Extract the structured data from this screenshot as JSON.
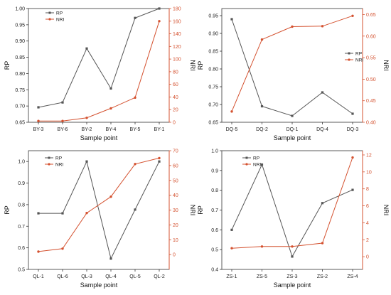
{
  "colors": {
    "rp": "#555555",
    "nri": "#d4512f",
    "axis": "#333333"
  },
  "chart_data": [
    {
      "type": "line",
      "x_ticks": [
        "BY-3",
        "BY-6",
        "BY-2",
        "BY-4",
        "BY-5",
        "BY-1"
      ],
      "xlabel": "Sample point",
      "ylabel_left": "RP",
      "ylabel_right": "NRI",
      "ylim_left": [
        0.65,
        1.0
      ],
      "yticks_left": [
        "0.65",
        "0.70",
        "0.75",
        "0.80",
        "0.85",
        "0.90",
        "0.95",
        "1.00"
      ],
      "ylim_right": [
        0,
        180
      ],
      "yticks_right": [
        "0",
        "20",
        "40",
        "60",
        "80",
        "100",
        "120",
        "140",
        "160",
        "180"
      ],
      "legend": {
        "position": "top-left"
      },
      "series": [
        {
          "name": "RP",
          "axis": "left",
          "marker": "square",
          "values": [
            0.696,
            0.711,
            0.877,
            0.754,
            0.971,
            1.0
          ]
        },
        {
          "name": "NRI",
          "axis": "right",
          "marker": "circle",
          "values": [
            2,
            2,
            7,
            22,
            39,
            160
          ]
        }
      ]
    },
    {
      "type": "line",
      "x_ticks": [
        "DQ-5",
        "DQ-2",
        "DQ-1",
        "DQ-4",
        "DQ-3"
      ],
      "xlabel": "Sample point",
      "ylabel_left": "RP",
      "ylabel_right": "NRI",
      "ylim_left": [
        0.65,
        0.97
      ],
      "yticks_left": [
        "0.65",
        "0.70",
        "0.75",
        "0.80",
        "0.85",
        "0.90",
        "0.95"
      ],
      "ylim_right": [
        0.4,
        0.664
      ],
      "yticks_right": [
        "0.40",
        "0.45",
        "0.50",
        "0.55",
        "0.60",
        "0.65"
      ],
      "legend": {
        "position": "right"
      },
      "series": [
        {
          "name": "RP",
          "axis": "left",
          "marker": "square",
          "values": [
            0.94,
            0.695,
            0.668,
            0.734,
            0.674
          ]
        },
        {
          "name": "NRI",
          "axis": "right",
          "marker": "circle",
          "values": [
            0.425,
            0.592,
            0.622,
            0.623,
            0.647
          ]
        }
      ]
    },
    {
      "type": "line",
      "x_ticks": [
        "QL-1",
        "QL-6",
        "QL-3",
        "QL-4",
        "QL-5",
        "QL-2"
      ],
      "xlabel": "Sample point",
      "ylabel_left": "RP",
      "ylabel_right": "NRI",
      "ylim_left": [
        0.5,
        1.05
      ],
      "yticks_left": [
        "0.5",
        "0.6",
        "0.7",
        "0.8",
        "0.9",
        "1.0"
      ],
      "ylim_right": [
        -10,
        70
      ],
      "yticks_right": [
        "0",
        "10",
        "20",
        "30",
        "40",
        "50",
        "60",
        "70"
      ],
      "legend": {
        "position": "top-left"
      },
      "series": [
        {
          "name": "RP",
          "axis": "left",
          "marker": "square",
          "values": [
            0.76,
            0.76,
            1.0,
            0.55,
            0.777,
            1.0
          ]
        },
        {
          "name": "NRI",
          "axis": "right",
          "marker": "circle",
          "values": [
            2,
            4,
            28,
            39,
            61,
            65
          ]
        }
      ]
    },
    {
      "type": "line",
      "x_ticks": [
        "ZS-1",
        "ZS-5",
        "ZS-3",
        "ZS-2",
        "ZS-4"
      ],
      "xlabel": "Sample point",
      "ylabel_left": "RP",
      "ylabel_right": "NRI",
      "ylim_left": [
        0.4,
        1.0
      ],
      "yticks_left": [
        "0.4",
        "0.5",
        "0.6",
        "0.7",
        "0.8",
        "0.9",
        "1.0"
      ],
      "ylim_right": [
        -1.5,
        12.5
      ],
      "yticks_right": [
        "0",
        "2",
        "4",
        "6",
        "8",
        "10",
        "12"
      ],
      "legend": {
        "position": "top-left"
      },
      "series": [
        {
          "name": "RP",
          "axis": "left",
          "marker": "square",
          "values": [
            0.6,
            0.93,
            0.465,
            0.735,
            0.802
          ]
        },
        {
          "name": "NRI",
          "axis": "right",
          "marker": "circle",
          "values": [
            1.0,
            1.2,
            1.2,
            1.6,
            11.7
          ]
        }
      ]
    }
  ]
}
